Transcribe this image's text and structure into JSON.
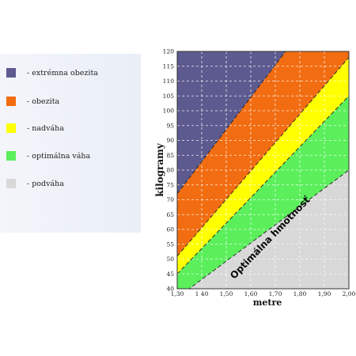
{
  "legend": {
    "items": [
      {
        "label": "- extrémna obezita",
        "color": "#5d5a8f"
      },
      {
        "label": " - obezita",
        "color": "#f26d12"
      },
      {
        "label": " - nadváha",
        "color": "#ffff00"
      },
      {
        "label": " - optimálna váha",
        "color": "#5bef5b"
      },
      {
        "label": " - podváha",
        "color": "#d8d8d8"
      }
    ]
  },
  "chart_data": {
    "type": "area",
    "xlabel": "metre",
    "ylabel": "kilogramy",
    "band_label": "Optimálna hmotnosť",
    "xlim": [
      1.3,
      2.0
    ],
    "ylim": [
      40,
      120
    ],
    "x_ticks": [
      "1,30",
      "1 40",
      "1,50",
      "1,60",
      "1,70",
      "1,80",
      "1,90",
      "2,00"
    ],
    "y_ticks": [
      "40",
      "45",
      "50",
      "55",
      "60",
      "65",
      "70",
      "75",
      "80",
      "85",
      "90",
      "95",
      "100",
      "105",
      "110",
      "115",
      "120"
    ],
    "grid": true,
    "boundaries": [
      {
        "name": "podváha / optimálna váha",
        "x": [
          1.3,
          2.0
        ],
        "y": [
          37,
          80
        ]
      },
      {
        "name": "optimálna váha / nadváha",
        "x": [
          1.3,
          2.0
        ],
        "y": [
          45,
          105
        ]
      },
      {
        "name": "nadváha / obezita",
        "x": [
          1.3,
          2.0
        ],
        "y": [
          51,
          118
        ]
      },
      {
        "name": "obezita / extrémna obezita",
        "x": [
          1.3,
          2.0
        ],
        "y": [
          72,
          148
        ]
      }
    ],
    "bands": [
      {
        "name": "podváha",
        "color": "#d8d8d8"
      },
      {
        "name": "optimálna váha",
        "color": "#5bef5b"
      },
      {
        "name": "nadváha",
        "color": "#ffff00"
      },
      {
        "name": "obezita",
        "color": "#f26d12"
      },
      {
        "name": "extrémna obezita",
        "color": "#5d5a8f"
      }
    ]
  }
}
